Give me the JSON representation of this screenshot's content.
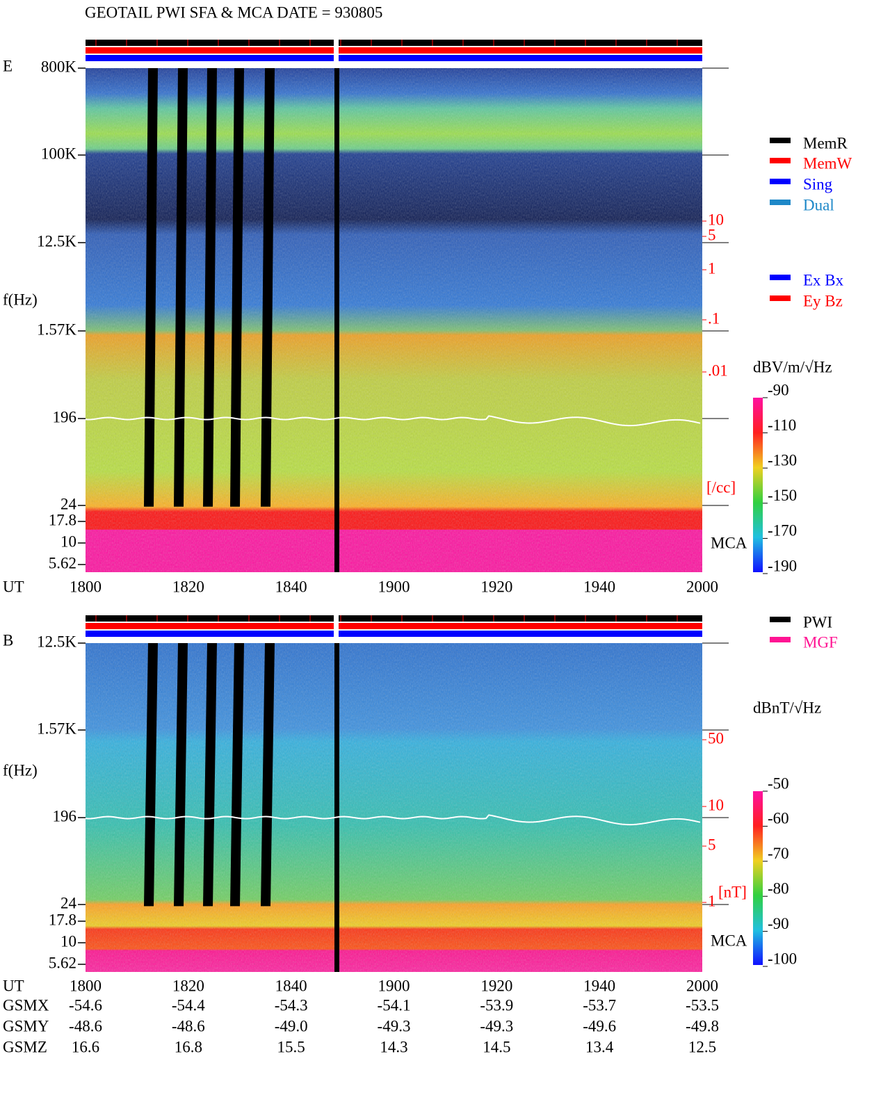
{
  "header": {
    "title": "GEOTAIL  PWI SFA & MCA   DATE = 930805"
  },
  "panel_e": {
    "label": "E",
    "y_axis_label": "f(Hz)",
    "y_ticks": [
      "800K",
      "100K",
      "12.5K",
      "1.57K",
      "196",
      "24",
      "17.8",
      "10",
      "5.62"
    ],
    "x_axis_label": "UT",
    "x_ticks": [
      "1800",
      "1820",
      "1840",
      "1900",
      "1920",
      "1940",
      "2000"
    ],
    "mca_label": "MCA",
    "density_ticks": [
      "10",
      "5",
      "1",
      ".1",
      ".01"
    ],
    "density_unit": "[/cc]",
    "colorbar_unit": "dBV/m/√Hz",
    "colorbar_ticks": [
      "-90",
      "-110",
      "-130",
      "-150",
      "-170",
      "-190"
    ],
    "legend": [
      {
        "label": "MemR",
        "color": "#000000"
      },
      {
        "label": "MemW",
        "color": "#ff0000"
      },
      {
        "label": "Sing",
        "color": "#0000ff"
      },
      {
        "label": "Dual",
        "color": "#1e88c8"
      }
    ],
    "component_legend": [
      {
        "label": "Ex Bx",
        "color": "#0000ff"
      },
      {
        "label": "Ey Bz",
        "color": "#ff0000"
      }
    ]
  },
  "panel_b": {
    "label": "B",
    "y_axis_label": "f(Hz)",
    "y_ticks": [
      "12.5K",
      "1.57K",
      "196",
      "24",
      "17.8",
      "10",
      "5.62"
    ],
    "x_axis_label": "UT",
    "x_ticks": [
      "1800",
      "1820",
      "1840",
      "1900",
      "1920",
      "1940",
      "2000"
    ],
    "mca_label": "MCA",
    "field_ticks": [
      "50",
      "10",
      "5",
      "1"
    ],
    "field_unit": "[nT]",
    "colorbar_unit": "dBnT/√Hz",
    "colorbar_ticks": [
      "-50",
      "-60",
      "-70",
      "-80",
      "-90",
      "-100"
    ],
    "legend": [
      {
        "label": "PWI",
        "color": "#000000"
      },
      {
        "label": "MGF",
        "color": "#ff1493"
      }
    ]
  },
  "orbit": {
    "rows": [
      [
        "GSMX",
        "-54.6",
        "-54.4",
        "-54.3",
        "-54.1",
        "-53.9",
        "-53.7",
        "-53.5"
      ],
      [
        "GSMY",
        "-48.6",
        "-48.6",
        "-49.0",
        "-49.3",
        "-49.3",
        "-49.6",
        "-49.8"
      ],
      [
        "GSMZ",
        "16.6",
        "16.8",
        "15.5",
        "14.3",
        "14.5",
        "13.4",
        "12.5"
      ]
    ]
  }
}
